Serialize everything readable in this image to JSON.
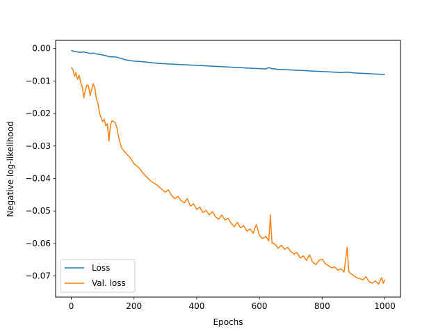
{
  "chart_data": {
    "type": "line",
    "title": "",
    "xlabel": "Epochs",
    "ylabel": "Negative log-likelihood",
    "xlim": [
      -50,
      1050
    ],
    "ylim": [
      -0.0765,
      0.0025
    ],
    "xticks": [
      0,
      200,
      400,
      600,
      800,
      1000
    ],
    "xtick_labels": [
      "0",
      "200",
      "400",
      "600",
      "800",
      "1000"
    ],
    "yticks": [
      0.0,
      -0.01,
      -0.02,
      -0.03,
      -0.04,
      -0.05,
      -0.06,
      -0.07
    ],
    "ytick_labels": [
      "0.00",
      "−0.01",
      "−0.02",
      "−0.03",
      "−0.04",
      "−0.05",
      "−0.06",
      "−0.07"
    ],
    "grid": false,
    "legend_position": "lower-left",
    "series": [
      {
        "name": "Loss",
        "color": "#1f77b4",
        "x": [
          0,
          10,
          20,
          30,
          40,
          50,
          60,
          70,
          80,
          90,
          100,
          110,
          120,
          130,
          140,
          150,
          160,
          170,
          180,
          200,
          220,
          240,
          260,
          280,
          300,
          320,
          340,
          360,
          380,
          400,
          420,
          440,
          460,
          480,
          500,
          520,
          540,
          560,
          580,
          600,
          620,
          630,
          640,
          660,
          680,
          700,
          720,
          740,
          760,
          780,
          800,
          820,
          840,
          860,
          880,
          900,
          920,
          940,
          960,
          980,
          1000
        ],
        "y": [
          -0.0006,
          -0.0009,
          -0.0011,
          -0.0012,
          -0.0011,
          -0.0013,
          -0.0015,
          -0.0014,
          -0.0017,
          -0.0018,
          -0.002,
          -0.0022,
          -0.0025,
          -0.0026,
          -0.0026,
          -0.0028,
          -0.0031,
          -0.0034,
          -0.0036,
          -0.0039,
          -0.004,
          -0.0042,
          -0.0044,
          -0.0046,
          -0.0047,
          -0.0048,
          -0.0049,
          -0.005,
          -0.0051,
          -0.0052,
          -0.0053,
          -0.0054,
          -0.0055,
          -0.0056,
          -0.0057,
          -0.0058,
          -0.0059,
          -0.006,
          -0.0061,
          -0.0062,
          -0.0063,
          -0.0059,
          -0.0062,
          -0.0064,
          -0.0065,
          -0.0066,
          -0.0067,
          -0.0068,
          -0.0069,
          -0.007,
          -0.0071,
          -0.0072,
          -0.0073,
          -0.0074,
          -0.0073,
          -0.0075,
          -0.0076,
          -0.0077,
          -0.0078,
          -0.0079,
          -0.008
        ]
      },
      {
        "name": "Val. loss",
        "color": "#ff7f0e",
        "x": [
          0,
          5,
          10,
          15,
          20,
          25,
          30,
          35,
          40,
          45,
          50,
          55,
          60,
          65,
          70,
          75,
          80,
          85,
          90,
          95,
          100,
          105,
          110,
          115,
          120,
          125,
          130,
          135,
          140,
          145,
          150,
          155,
          160,
          170,
          180,
          190,
          200,
          210,
          220,
          230,
          240,
          250,
          260,
          270,
          280,
          290,
          300,
          310,
          320,
          330,
          340,
          350,
          360,
          370,
          380,
          390,
          400,
          410,
          420,
          430,
          440,
          450,
          460,
          470,
          480,
          490,
          500,
          510,
          520,
          530,
          540,
          550,
          560,
          570,
          580,
          590,
          600,
          610,
          620,
          630,
          635,
          640,
          650,
          660,
          670,
          680,
          690,
          700,
          710,
          720,
          730,
          740,
          750,
          760,
          770,
          780,
          790,
          800,
          810,
          820,
          830,
          840,
          850,
          860,
          870,
          880,
          885,
          890,
          900,
          910,
          920,
          930,
          940,
          950,
          960,
          970,
          980,
          990,
          995,
          1000
        ],
        "y": [
          -0.0058,
          -0.0065,
          -0.0085,
          -0.0075,
          -0.0095,
          -0.0082,
          -0.0105,
          -0.0118,
          -0.0152,
          -0.0128,
          -0.0112,
          -0.0115,
          -0.0145,
          -0.0125,
          -0.0108,
          -0.0122,
          -0.0155,
          -0.0168,
          -0.0198,
          -0.0212,
          -0.0225,
          -0.0218,
          -0.0238,
          -0.0232,
          -0.0285,
          -0.0235,
          -0.0222,
          -0.0225,
          -0.0228,
          -0.0242,
          -0.0268,
          -0.0288,
          -0.0305,
          -0.0318,
          -0.0328,
          -0.0338,
          -0.0355,
          -0.0362,
          -0.0372,
          -0.0385,
          -0.0395,
          -0.0405,
          -0.0412,
          -0.0418,
          -0.0425,
          -0.0435,
          -0.0442,
          -0.0435,
          -0.0452,
          -0.0462,
          -0.0455,
          -0.0468,
          -0.0475,
          -0.0462,
          -0.0485,
          -0.0478,
          -0.0495,
          -0.0488,
          -0.0505,
          -0.0498,
          -0.0512,
          -0.0502,
          -0.0518,
          -0.0525,
          -0.0512,
          -0.0528,
          -0.0522,
          -0.0538,
          -0.0548,
          -0.0535,
          -0.0552,
          -0.0545,
          -0.0562,
          -0.0555,
          -0.0568,
          -0.0542,
          -0.0575,
          -0.0585,
          -0.0578,
          -0.0592,
          -0.0512,
          -0.0598,
          -0.0602,
          -0.0615,
          -0.0605,
          -0.0618,
          -0.0612,
          -0.0625,
          -0.0632,
          -0.0628,
          -0.0645,
          -0.0638,
          -0.0652,
          -0.0635,
          -0.0658,
          -0.0665,
          -0.0652,
          -0.0648,
          -0.0662,
          -0.0668,
          -0.0675,
          -0.0672,
          -0.0682,
          -0.0678,
          -0.0688,
          -0.0612,
          -0.0685,
          -0.0692,
          -0.0698,
          -0.0705,
          -0.0708,
          -0.0712,
          -0.0702,
          -0.0718,
          -0.0722,
          -0.0715,
          -0.0725,
          -0.0705,
          -0.0722,
          -0.0712
        ]
      }
    ]
  }
}
